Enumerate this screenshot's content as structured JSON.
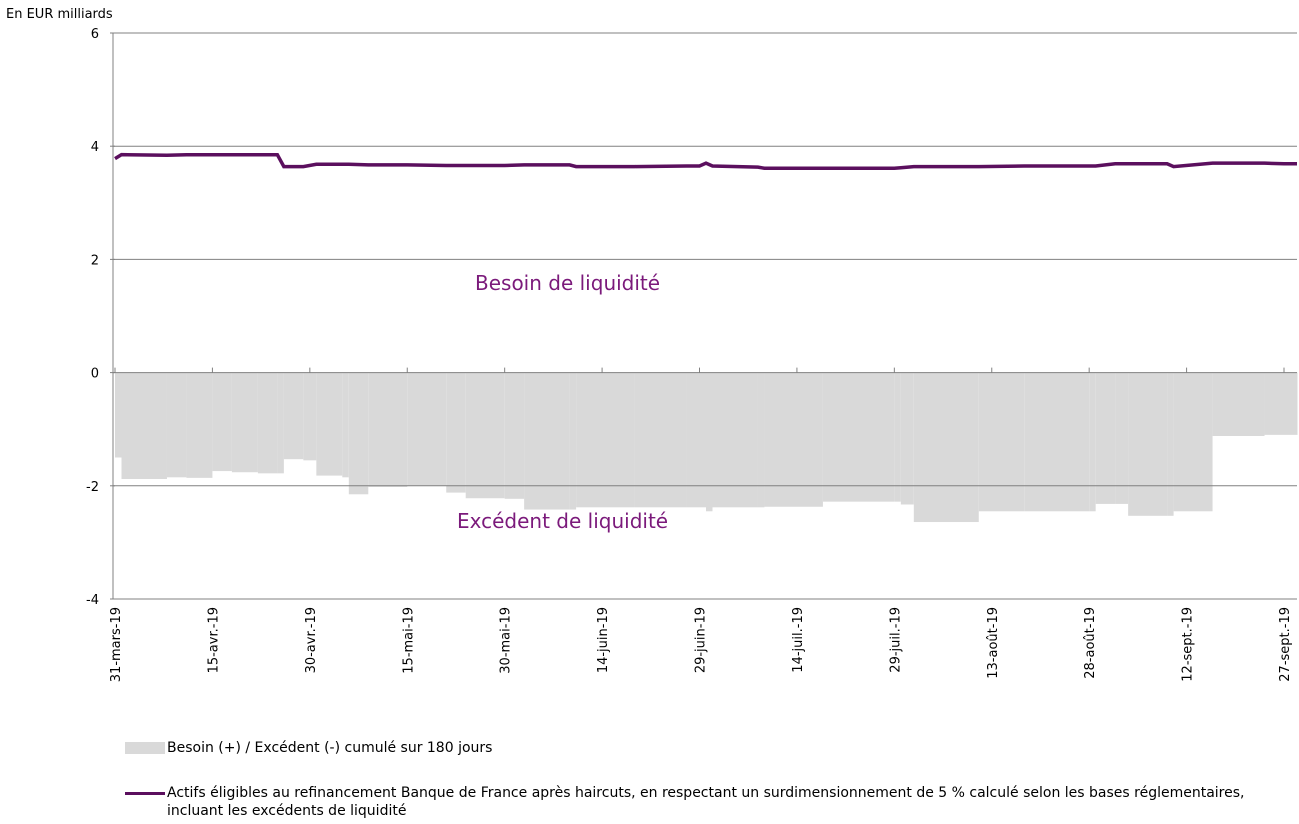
{
  "chart_data": {
    "type": "bar-line",
    "y_axis_label": "En EUR milliards",
    "annotations": [
      "Besoin de liquidité",
      "Excédent de liquidité"
    ],
    "x": [
      "2019-03-31",
      "2019-04-01",
      "2019-04-08",
      "2019-04-11",
      "2019-04-15",
      "2019-04-18",
      "2019-04-22",
      "2019-04-25",
      "2019-04-26",
      "2019-04-29",
      "2019-05-01",
      "2019-05-05",
      "2019-05-06",
      "2019-05-09",
      "2019-05-15",
      "2019-05-21",
      "2019-05-24",
      "2019-05-30",
      "2019-06-02",
      "2019-06-09",
      "2019-06-10",
      "2019-06-19",
      "2019-06-27",
      "2019-06-29",
      "2019-06-30",
      "2019-07-01",
      "2019-07-08",
      "2019-07-09",
      "2019-07-18",
      "2019-07-29",
      "2019-07-30",
      "2019-08-01",
      "2019-08-11",
      "2019-08-18",
      "2019-08-28",
      "2019-08-29",
      "2019-09-01",
      "2019-09-03",
      "2019-09-09",
      "2019-09-10",
      "2019-09-16",
      "2019-09-24",
      "2019-09-27",
      "2019-09-29"
    ],
    "series": [
      {
        "name": "Besoin (+)  / Excédent (-) cumulé sur 180 jours",
        "kind": "bar",
        "color": "#d9d9d9",
        "values": [
          -1.5,
          -1.88,
          -1.85,
          -1.86,
          -1.74,
          -1.76,
          -1.78,
          -1.78,
          -1.53,
          -1.55,
          -1.82,
          -1.85,
          -2.15,
          -2.02,
          -2.0,
          -2.12,
          -2.22,
          -2.23,
          -2.42,
          -2.42,
          -2.38,
          -2.38,
          -2.38,
          -2.38,
          -2.45,
          -2.38,
          -2.38,
          -2.37,
          -2.28,
          -2.28,
          -2.33,
          -2.64,
          -2.45,
          -2.45,
          -2.45,
          -2.32,
          -2.32,
          -2.53,
          -2.53,
          -2.45,
          -1.12,
          -1.1,
          -1.1,
          -1.1
        ]
      },
      {
        "name": "Actifs éligibles au refinancement Banque de France après haircuts, en respectant un surdimensionnement de 5 % calculé selon les bases réglementaires, incluant les excédents de liquidité",
        "kind": "line",
        "color": "#5b0f5e",
        "values": [
          3.78,
          3.85,
          3.84,
          3.85,
          3.85,
          3.85,
          3.85,
          3.85,
          3.64,
          3.64,
          3.68,
          3.68,
          3.68,
          3.67,
          3.67,
          3.66,
          3.66,
          3.66,
          3.67,
          3.67,
          3.64,
          3.64,
          3.65,
          3.65,
          3.7,
          3.65,
          3.63,
          3.61,
          3.61,
          3.61,
          3.62,
          3.64,
          3.64,
          3.65,
          3.65,
          3.65,
          3.69,
          3.69,
          3.69,
          3.64,
          3.7,
          3.7,
          3.69,
          3.69
        ]
      }
    ],
    "xlim": [
      "2019-03-31",
      "2019-09-29"
    ],
    "xticks": [
      {
        "value": "2019-03-31",
        "label": "31-mars-19"
      },
      {
        "value": "2019-04-15",
        "label": "15-avr.-19"
      },
      {
        "value": "2019-04-30",
        "label": "30-avr.-19"
      },
      {
        "value": "2019-05-15",
        "label": "15-mai-19"
      },
      {
        "value": "2019-05-30",
        "label": "30-mai-19"
      },
      {
        "value": "2019-06-14",
        "label": "14-juin-19"
      },
      {
        "value": "2019-06-29",
        "label": "29-juin-19"
      },
      {
        "value": "2019-07-14",
        "label": "14-juil.-19"
      },
      {
        "value": "2019-07-29",
        "label": "29-juil.-19"
      },
      {
        "value": "2019-08-13",
        "label": "13-août-19"
      },
      {
        "value": "2019-08-28",
        "label": "28-août-19"
      },
      {
        "value": "2019-09-12",
        "label": "12-sept.-19"
      },
      {
        "value": "2019-09-27",
        "label": "27-sept.-19"
      }
    ],
    "ylim": [
      -4,
      6
    ],
    "yticks": [
      -4,
      -2,
      0,
      2,
      4,
      6
    ],
    "grid": true,
    "annotation_color": "#7b1a7b"
  }
}
